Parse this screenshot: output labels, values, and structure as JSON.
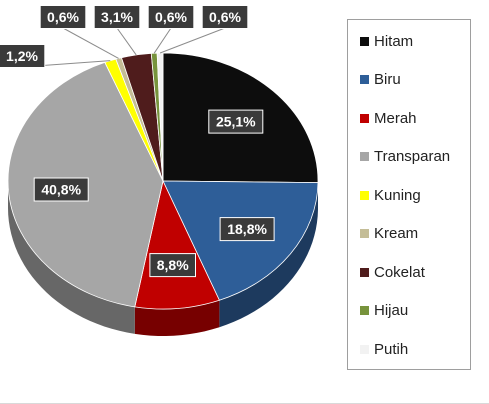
{
  "chart_data": {
    "type": "pie",
    "categories": [
      "Hitam",
      "Biru",
      "Merah",
      "Transparan",
      "Kuning",
      "Kream",
      "Cokelat",
      "Hijau",
      "Putih"
    ],
    "values": [
      25.1,
      18.8,
      8.8,
      40.8,
      1.2,
      0.6,
      3.1,
      0.6,
      0.6
    ],
    "data_labels": [
      "25,1%",
      "18,8%",
      "8,8%",
      "40,8%",
      "1,2%",
      "0,6%",
      "3,1%",
      "0,6%",
      "0,6%"
    ],
    "colors": [
      "#0d0d0d",
      "#2e5e98",
      "#c00000",
      "#a6a6a6",
      "#ffff00",
      "#c4bd97",
      "#4f1c1c",
      "#77933c",
      "#f2f2f2"
    ],
    "start_angle_deg": 0,
    "direction": "clockwise",
    "style": "3d-tilted",
    "legend_position": "right"
  }
}
